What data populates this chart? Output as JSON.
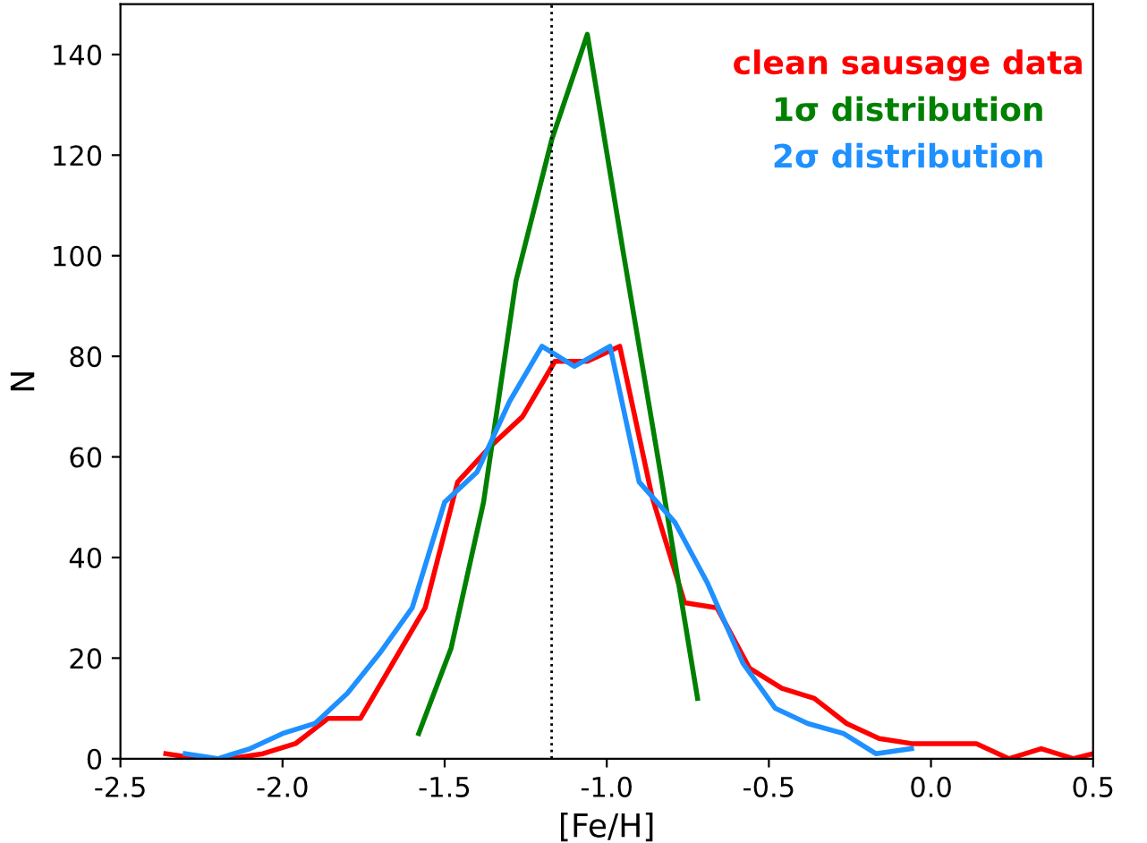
{
  "chart_data": {
    "type": "line",
    "xlabel": "[Fe/H]",
    "ylabel": "N",
    "xlim": [
      -2.5,
      0.5
    ],
    "xticks": [
      -2.5,
      {
        "value": -2,
        "label": "-2.0"
      },
      -1.5,
      {
        "value": -1,
        "label": "-1.0"
      },
      -0.5,
      {
        "value": 0,
        "label": "0.0"
      },
      0.5
    ],
    "ylim": [
      0,
      150
    ],
    "yticks": [
      0,
      20,
      40,
      60,
      80,
      100,
      120,
      140
    ],
    "grid": false,
    "legend": "top right",
    "line_style": "solid",
    "ref_lines": [
      {
        "axis": "x",
        "value": -1.17,
        "color": "#000000",
        "line_style": "dotted"
      }
    ],
    "series": [
      {
        "name": "clean sausage data",
        "color": "#ff0000",
        "x": [
          -2.36,
          -2.26,
          -2.16,
          -2.06,
          -1.96,
          -1.86,
          -1.76,
          -1.66,
          -1.56,
          -1.46,
          -1.36,
          -1.26,
          -1.16,
          -1.06,
          -0.96,
          -0.86,
          -0.76,
          -0.66,
          -0.56,
          -0.46,
          -0.36,
          -0.26,
          -0.16,
          -0.06,
          0.04,
          0.14,
          0.24,
          0.34,
          0.44,
          0.5
        ],
        "values": [
          1,
          0,
          0,
          1,
          3,
          8,
          8,
          19,
          30,
          55,
          62,
          68,
          79,
          79,
          82,
          52,
          31,
          30,
          18,
          14,
          12,
          7,
          4,
          3,
          3,
          3,
          0,
          2,
          0,
          1
        ]
      },
      {
        "name": "1σ distribution",
        "color": "#008000",
        "x": [
          -1.58,
          -1.48,
          -1.38,
          -1.28,
          -1.17,
          -1.06,
          -0.95,
          -0.84,
          -0.72
        ],
        "values": [
          5,
          22,
          51,
          95,
          123,
          144,
          101,
          59,
          12
        ]
      },
      {
        "name": "2σ distribution",
        "color": "#1e90ff",
        "x": [
          -2.3,
          -2.2,
          -2.1,
          -2.0,
          -1.9,
          -1.8,
          -1.7,
          -1.6,
          -1.5,
          -1.4,
          -1.3,
          -1.2,
          -1.1,
          -0.99,
          -0.9,
          -0.79,
          -0.69,
          -0.58,
          -0.48,
          -0.38,
          -0.27,
          -0.17,
          -0.06
        ],
        "values": [
          1,
          0,
          2,
          5,
          7,
          13,
          21,
          30,
          51,
          57,
          71,
          82,
          78,
          82,
          55,
          47,
          35,
          19,
          10,
          7,
          5,
          1,
          2
        ]
      }
    ]
  }
}
